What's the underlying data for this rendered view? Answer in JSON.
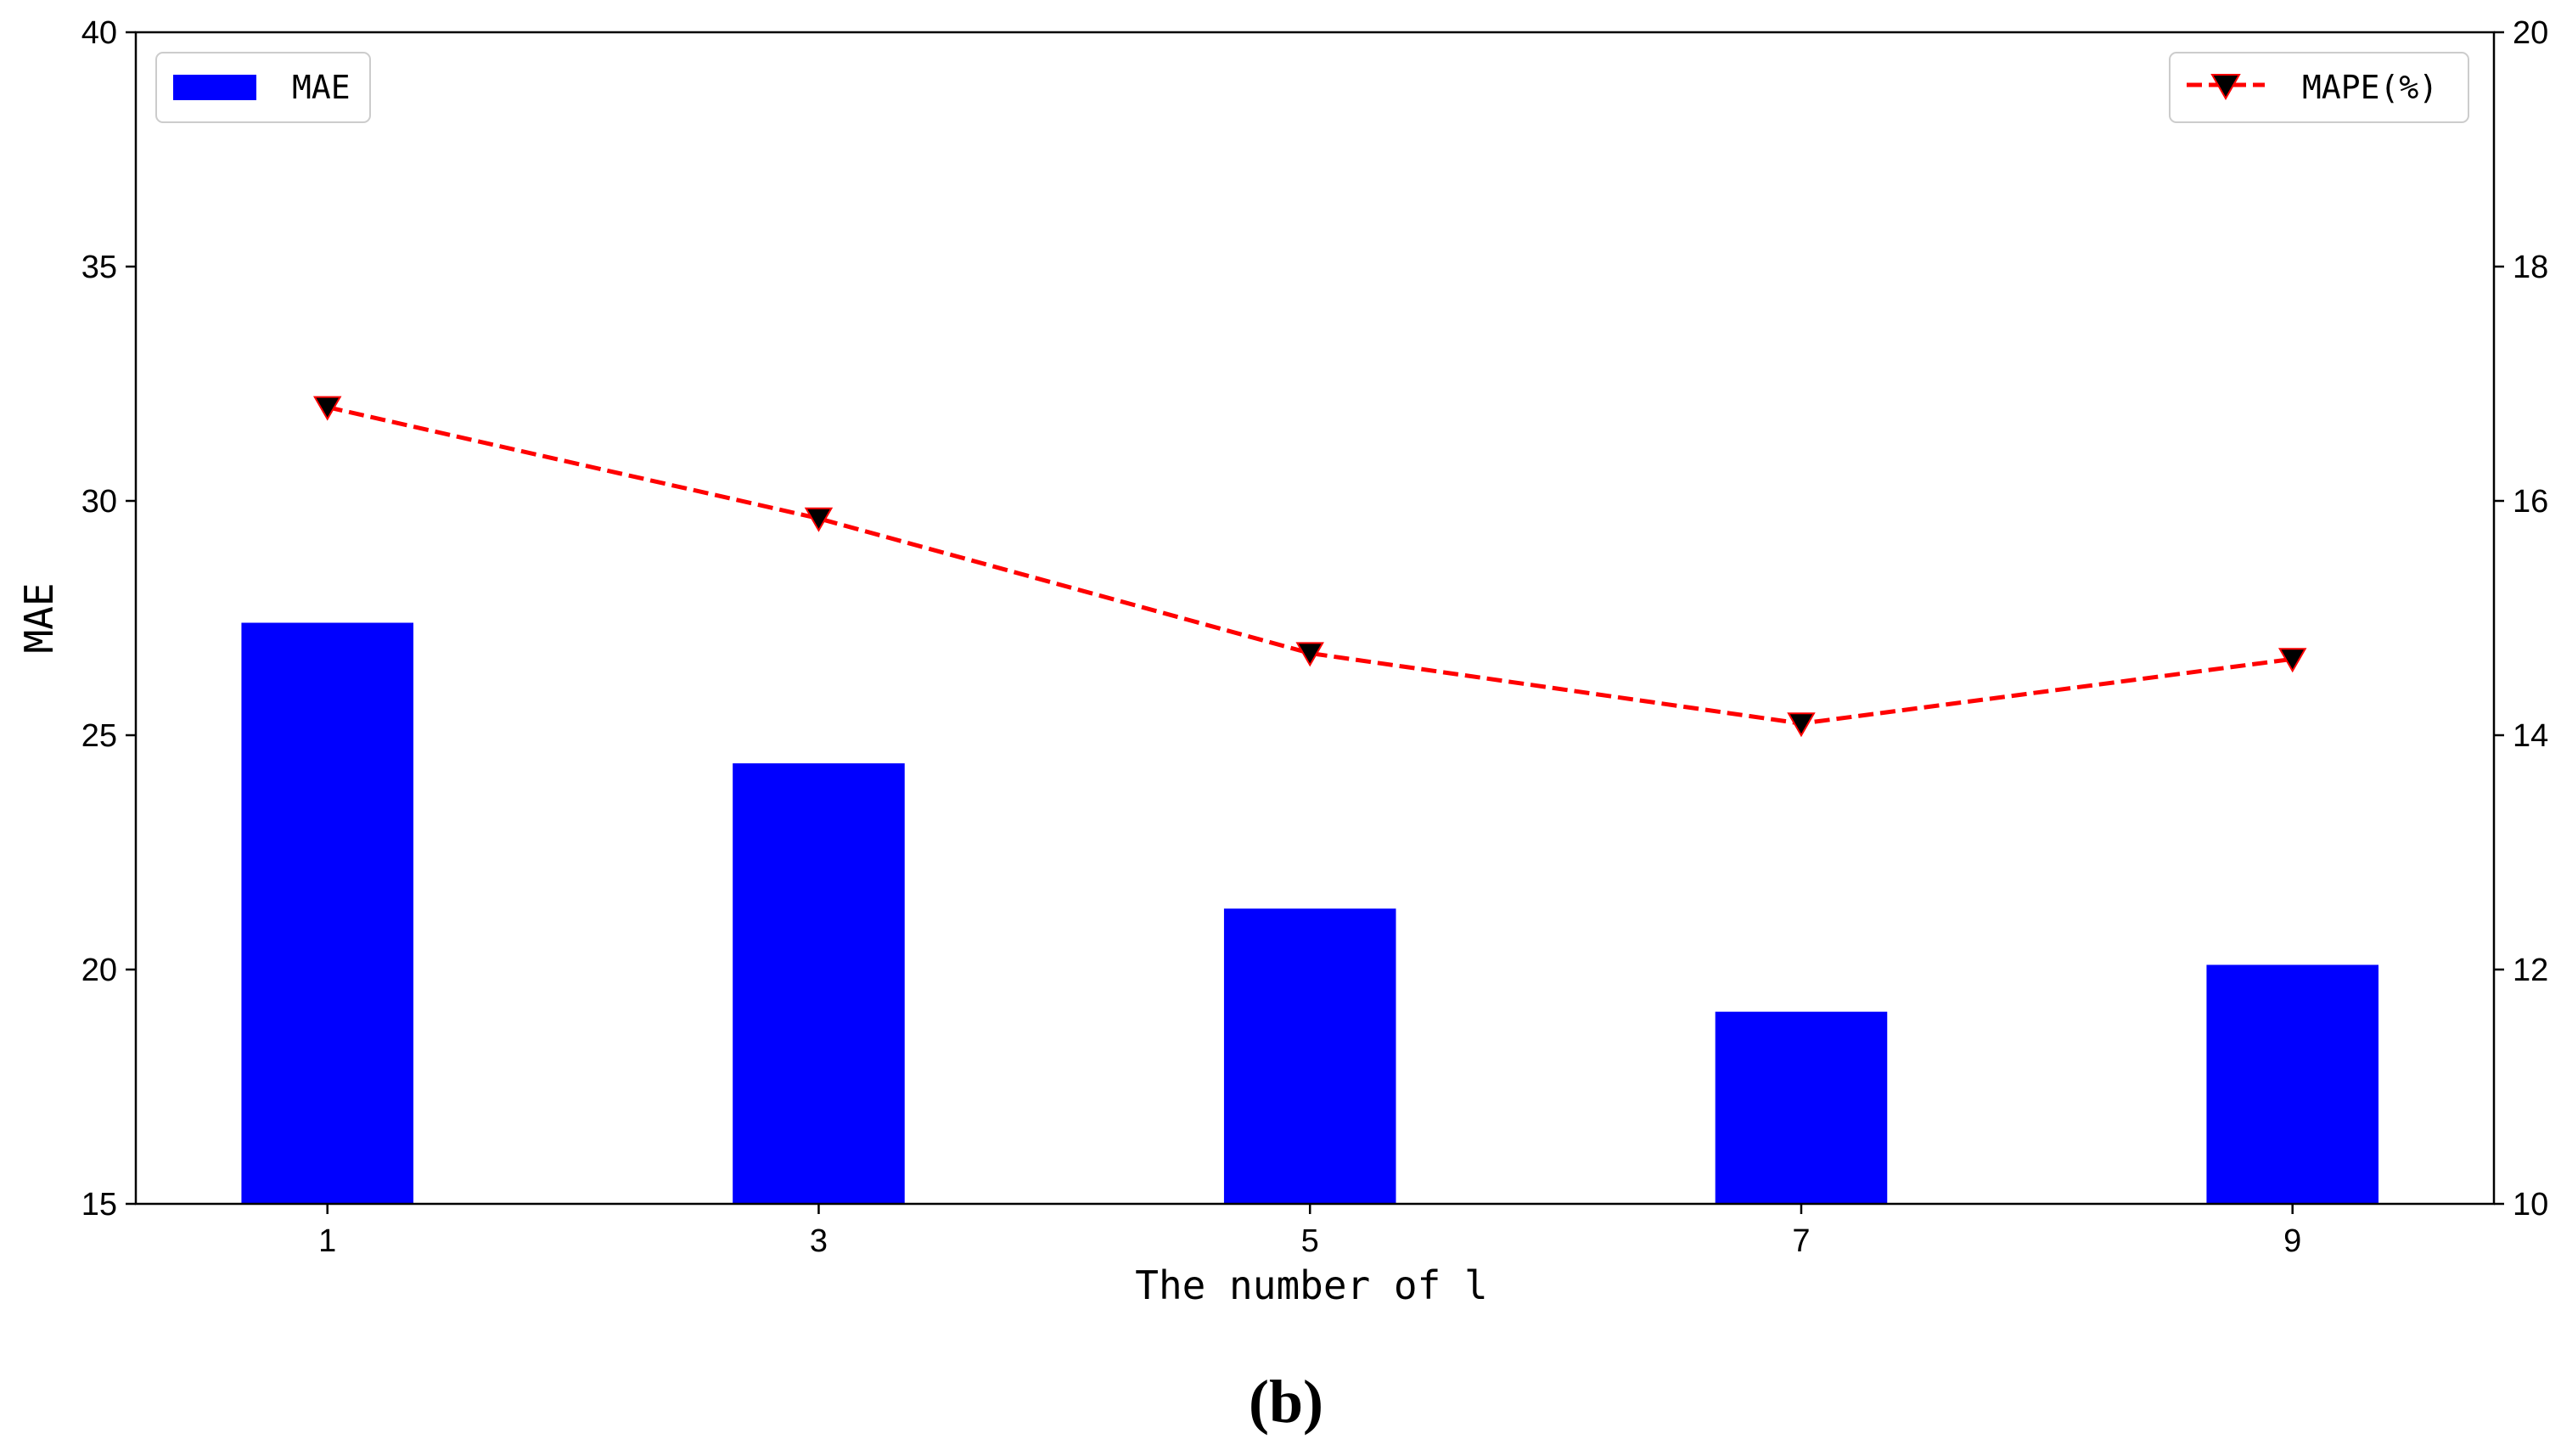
{
  "chart_data": {
    "type": "bar",
    "categories": [
      "1",
      "3",
      "5",
      "7",
      "9"
    ],
    "xlabel": "The number of l",
    "ylabel": "MAE",
    "ylabel_right": "",
    "ylim": [
      15,
      40
    ],
    "ylim_right": [
      10,
      20
    ],
    "yticks_left": [
      "15",
      "20",
      "25",
      "30",
      "35",
      "40"
    ],
    "yticks_right": [
      "10",
      "12",
      "14",
      "16",
      "18",
      "20"
    ],
    "series": [
      {
        "name": "MAE",
        "kind": "bar",
        "axis": "left",
        "color": "#0000ff",
        "values": [
          27.4,
          24.4,
          21.3,
          19.1,
          20.1
        ]
      },
      {
        "name": "MAPE(%)",
        "kind": "line",
        "axis": "right",
        "color": "#ff0000",
        "marker": "down-triangle",
        "marker_color": "#000000",
        "line_style": "dashed",
        "values": [
          16.8,
          15.85,
          14.7,
          14.1,
          14.65
        ]
      }
    ],
    "legend_left": "top-left",
    "legend_right": "top-right",
    "grid": false,
    "panel_label": "(b)"
  }
}
